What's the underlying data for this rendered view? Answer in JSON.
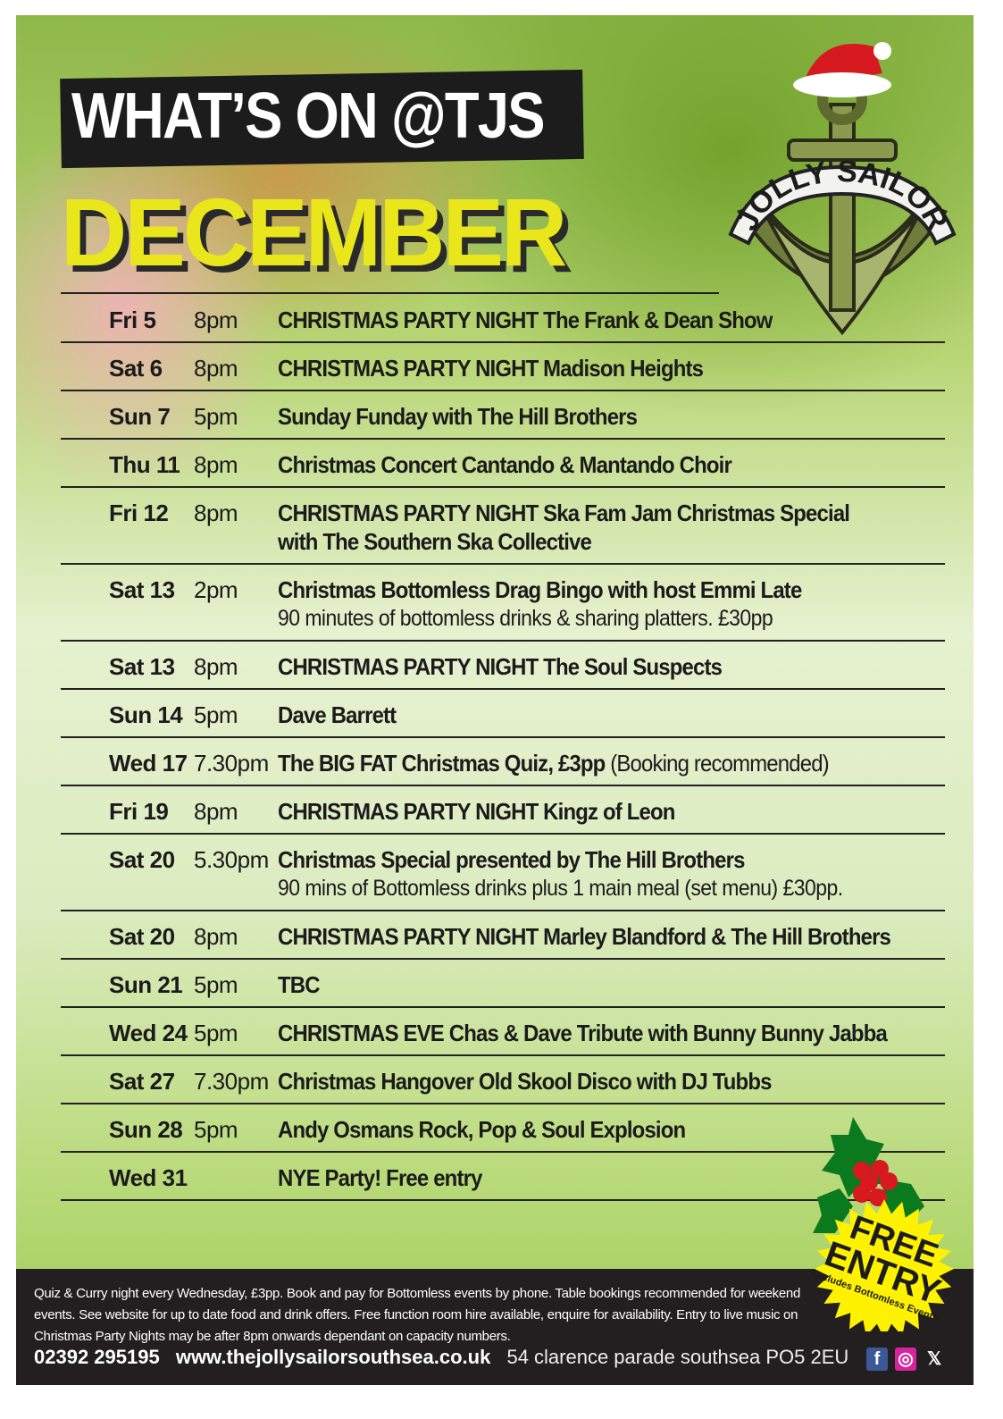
{
  "header": {
    "title": "WHAT’S ON @TJS",
    "month": "DECEMBER"
  },
  "logo": {
    "text": "JOLLY SAILOR"
  },
  "events": [
    {
      "day": "Fri 5",
      "time": "8pm",
      "event": "CHRISTMAS PARTY NIGHT The Frank & Dean Show"
    },
    {
      "day": "Sat 6",
      "time": "8pm",
      "event": "CHRISTMAS PARTY NIGHT Madison Heights"
    },
    {
      "day": "Sun 7",
      "time": "5pm",
      "event": "Sunday Funday with The Hill Brothers"
    },
    {
      "day": "Thu 11",
      "time": "8pm",
      "event": "Christmas Concert Cantando & Mantando Choir"
    },
    {
      "day": "Fri 12",
      "time": "8pm",
      "event": "CHRISTMAS PARTY NIGHT Ska Fam Jam Christmas Special with The Southern Ska Collective"
    },
    {
      "day": "Sat 13",
      "time": "2pm",
      "event": "Christmas Bottomless Drag Bingo with host Emmi Late",
      "sub": "90 minutes of bottomless drinks & sharing platters. £30pp"
    },
    {
      "day": "Sat 13",
      "time": "8pm",
      "event": "CHRISTMAS PARTY NIGHT The Soul Suspects"
    },
    {
      "day": "Sun 14",
      "time": "5pm",
      "event": "Dave Barrett"
    },
    {
      "day": "Wed 17",
      "time": "7.30pm",
      "event": "The BIG FAT Christmas Quiz, £3pp",
      "note": " (Booking recommended)"
    },
    {
      "day": "Fri 19",
      "time": "8pm",
      "event": "CHRISTMAS PARTY NIGHT Kingz of Leon"
    },
    {
      "day": "Sat 20",
      "time": "5.30pm",
      "event": "Christmas Special presented by The Hill Brothers",
      "sub": "90 mins of Bottomless drinks plus 1 main meal (set menu) £30pp."
    },
    {
      "day": "Sat 20",
      "time": "8pm",
      "event": "CHRISTMAS PARTY NIGHT Marley Blandford & The Hill Brothers"
    },
    {
      "day": "Sun 21",
      "time": "5pm",
      "event": "TBC"
    },
    {
      "day": "Wed 24",
      "time": "5pm",
      "event": "CHRISTMAS EVE Chas & Dave Tribute with Bunny Bunny Jabba"
    },
    {
      "day": "Sat 27",
      "time": "7.30pm",
      "event": "Christmas Hangover Old Skool Disco with DJ Tubbs"
    },
    {
      "day": "Sun 28",
      "time": "5pm",
      "event": "Andy Osmans Rock, Pop & Soul Explosion"
    },
    {
      "day": "Wed 31",
      "time": "",
      "event": "NYE Party! Free entry"
    }
  ],
  "badge": {
    "line1": "FREE",
    "line2": "ENTRY",
    "small": "Excludes Bottomless Events",
    "color": "#fff200"
  },
  "footer": {
    "info": "Quiz & Curry night every Wednesday, £3pp. Book and pay for Bottomless events by phone. Table bookings recommended for weekend events. See website for up to date food and drink offers. Free function room hire available, enquire for availability. Entry to live music on Christmas Party Nights may be after 8pm onwards dependant on capacity numbers.",
    "phone": "02392 295195",
    "website": "www.thejollysailorsouthsea.co.uk",
    "address": "54 clarence parade southsea PO5 2EU",
    "social": [
      {
        "icon": "facebook-icon",
        "glyph": "f",
        "color": "#3b5998"
      },
      {
        "icon": "instagram-icon",
        "glyph": "◎",
        "color": "#d6249f"
      },
      {
        "icon": "x-icon",
        "glyph": "𝕏",
        "color": "#231f20"
      }
    ]
  },
  "colors": {
    "accent_yellow": "#e9e71c",
    "dark": "#231f20",
    "green": "#9ccb52"
  }
}
